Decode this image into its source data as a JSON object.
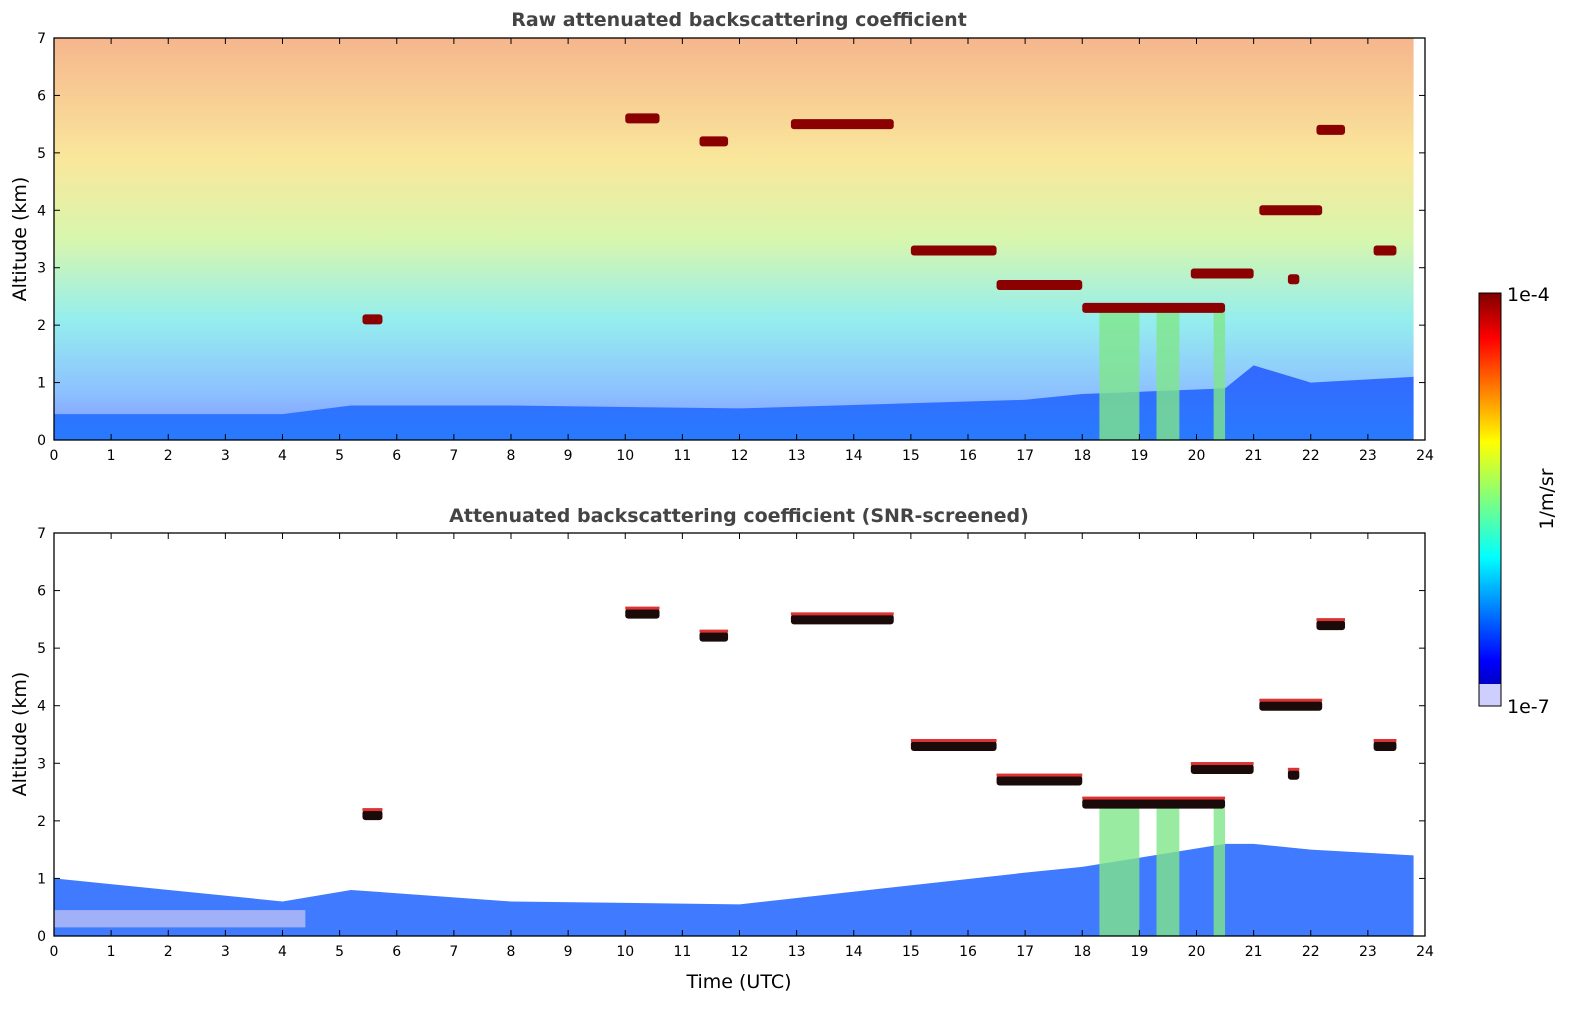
{
  "figure": {
    "colorbar": {
      "max_label": "1e-4",
      "min_label": "1e-7",
      "unit_label": "1/m/sr",
      "scale": "log",
      "colormap": "jet",
      "under_color": "#e8e8f8"
    },
    "common_xlabel": "Time (UTC)"
  },
  "chart_data": [
    {
      "type": "heatmap",
      "title": "Raw attenuated backscattering coefficient",
      "xlabel": "",
      "ylabel": "Altitude (km)",
      "xlim": [
        0,
        24
      ],
      "ylim": [
        0,
        7
      ],
      "xticks": [
        "0",
        "1",
        "2",
        "3",
        "4",
        "5",
        "6",
        "7",
        "8",
        "9",
        "10",
        "11",
        "12",
        "13",
        "14",
        "15",
        "16",
        "17",
        "18",
        "19",
        "20",
        "21",
        "22",
        "23",
        "24"
      ],
      "yticks": [
        "0",
        "1",
        "2",
        "3",
        "4",
        "5",
        "6",
        "7"
      ],
      "data_end_time": 23.8,
      "boundary_layer_top_km": [
        [
          0,
          0.45
        ],
        [
          4,
          0.45
        ],
        [
          5.2,
          0.6
        ],
        [
          8,
          0.6
        ],
        [
          12,
          0.55
        ],
        [
          17,
          0.7
        ],
        [
          18,
          0.8
        ],
        [
          20.5,
          0.9
        ],
        [
          21,
          1.3
        ],
        [
          22,
          1.0
        ],
        [
          23.8,
          1.1
        ]
      ],
      "cloud_layers": [
        {
          "time": [
            5.4,
            5.75
          ],
          "altitude_km": 2.1
        },
        {
          "time": [
            10.0,
            10.6
          ],
          "altitude_km": 5.6
        },
        {
          "time": [
            11.3,
            11.8
          ],
          "altitude_km": 5.2
        },
        {
          "time": [
            12.9,
            14.7
          ],
          "altitude_km": 5.5
        },
        {
          "time": [
            15.0,
            16.5
          ],
          "altitude_km": 3.3
        },
        {
          "time": [
            16.5,
            18.0
          ],
          "altitude_km": 2.7
        },
        {
          "time": [
            18.0,
            20.5
          ],
          "altitude_km": 2.3
        },
        {
          "time": [
            19.9,
            21.0
          ],
          "altitude_km": 2.9
        },
        {
          "time": [
            21.1,
            22.2
          ],
          "altitude_km": 4.0
        },
        {
          "time": [
            21.6,
            21.8
          ],
          "altitude_km": 2.8
        },
        {
          "time": [
            22.1,
            22.6
          ],
          "altitude_km": 5.4
        },
        {
          "time": [
            23.1,
            23.5
          ],
          "altitude_km": 3.3
        }
      ],
      "precipitation_streaks": [
        {
          "time": [
            18.3,
            19.0
          ],
          "from_km": 2.3,
          "to_km": 0
        },
        {
          "time": [
            19.3,
            19.7
          ],
          "from_km": 2.3,
          "to_km": 0
        },
        {
          "time": [
            20.3,
            20.5
          ],
          "from_km": 2.3,
          "to_km": 0
        }
      ]
    },
    {
      "type": "heatmap",
      "title": "Attenuated backscattering coefficient (SNR-screened)",
      "xlabel": "Time (UTC)",
      "ylabel": "Altitude (km)",
      "xlim": [
        0,
        24
      ],
      "ylim": [
        0,
        7
      ],
      "xticks": [
        "0",
        "1",
        "2",
        "3",
        "4",
        "5",
        "6",
        "7",
        "8",
        "9",
        "10",
        "11",
        "12",
        "13",
        "14",
        "15",
        "16",
        "17",
        "18",
        "19",
        "20",
        "21",
        "22",
        "23",
        "24"
      ],
      "yticks": [
        "0",
        "1",
        "2",
        "3",
        "4",
        "5",
        "6",
        "7"
      ],
      "data_end_time": 23.8,
      "screened_top_km": [
        [
          0,
          1.0
        ],
        [
          4,
          0.6
        ],
        [
          5.2,
          0.8
        ],
        [
          8,
          0.6
        ],
        [
          12,
          0.55
        ],
        [
          17,
          1.1
        ],
        [
          18,
          1.2
        ],
        [
          20.5,
          1.6
        ],
        [
          21,
          1.6
        ],
        [
          22,
          1.5
        ],
        [
          23.8,
          1.4
        ]
      ],
      "cloud_layers": [
        {
          "time": [
            5.4,
            5.75
          ],
          "altitude_km": 2.1
        },
        {
          "time": [
            10.0,
            10.6
          ],
          "altitude_km": 5.6
        },
        {
          "time": [
            11.3,
            11.8
          ],
          "altitude_km": 5.2
        },
        {
          "time": [
            12.9,
            14.7
          ],
          "altitude_km": 5.5
        },
        {
          "time": [
            15.0,
            16.5
          ],
          "altitude_km": 3.3
        },
        {
          "time": [
            16.5,
            18.0
          ],
          "altitude_km": 2.7
        },
        {
          "time": [
            18.0,
            20.5
          ],
          "altitude_km": 2.3
        },
        {
          "time": [
            19.9,
            21.0
          ],
          "altitude_km": 2.9
        },
        {
          "time": [
            21.1,
            22.2
          ],
          "altitude_km": 4.0
        },
        {
          "time": [
            21.6,
            21.8
          ],
          "altitude_km": 2.8
        },
        {
          "time": [
            22.1,
            22.6
          ],
          "altitude_km": 5.4
        },
        {
          "time": [
            23.1,
            23.5
          ],
          "altitude_km": 3.3
        }
      ]
    }
  ]
}
